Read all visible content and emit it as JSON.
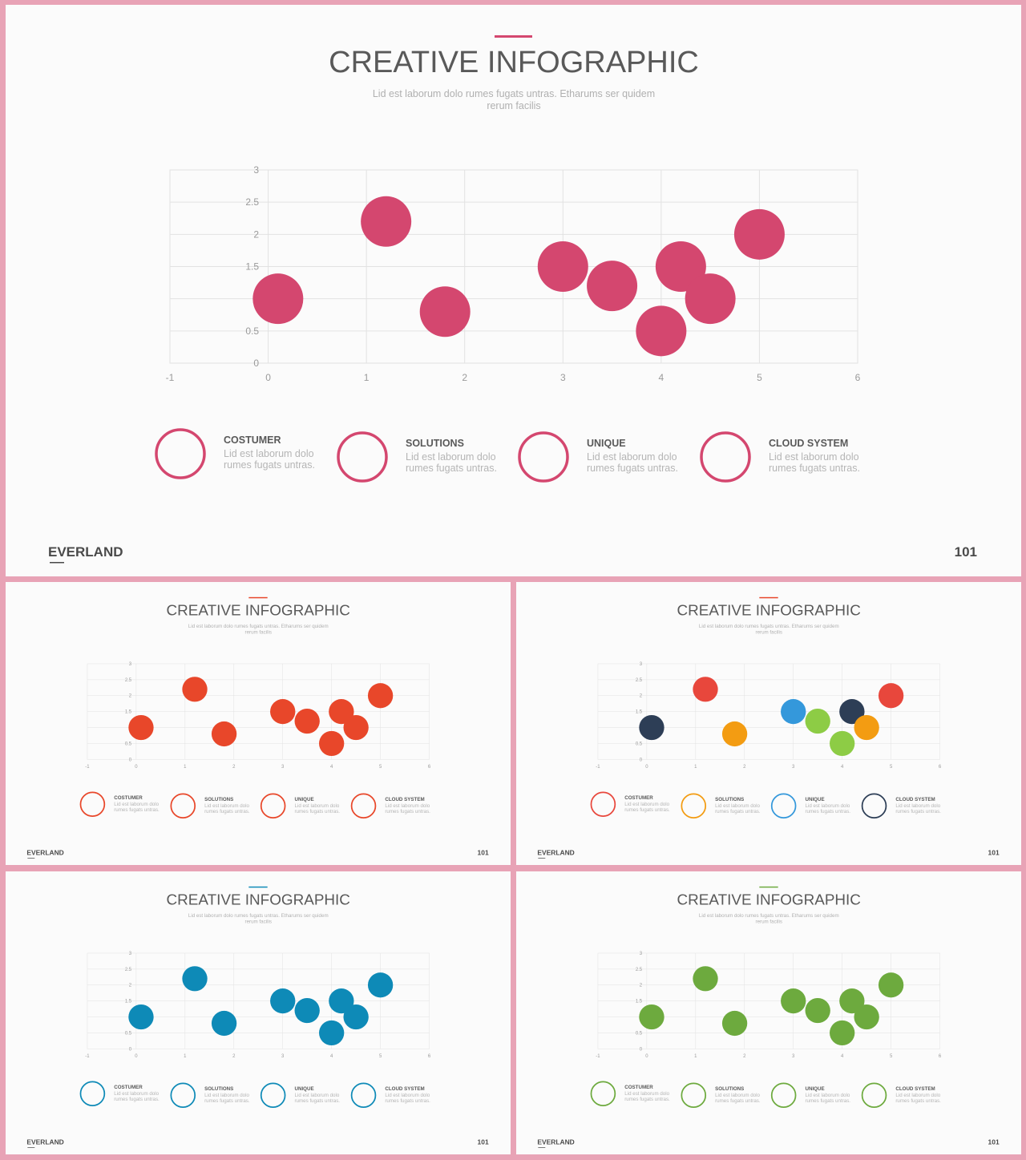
{
  "slide": {
    "title": "CREATIVE INFOGRAPHIC",
    "subtitle_line1": "Lid est laborum dolo rumes fugats untras. Etharums ser quidem",
    "subtitle_line2": "rerum facilis",
    "brand": "EVERLAND",
    "page_number": "101",
    "legend": [
      {
        "title": "COSTUMER",
        "line1": "Lid est laborum dolo",
        "line2": "rumes fugats untras."
      },
      {
        "title": "SOLUTIONS",
        "line1": "Lid est laborum dolo",
        "line2": "rumes fugats untras."
      },
      {
        "title": "UNIQUE",
        "line1": "Lid est laborum dolo",
        "line2": "rumes fugats untras."
      },
      {
        "title": "CLOUD SYSTEM",
        "line1": "Lid est laborum dolo",
        "line2": "rumes fugats untras."
      }
    ]
  },
  "chart_data": {
    "type": "scatter",
    "title": "",
    "xlabel": "",
    "ylabel": "",
    "xlim": [
      -1,
      6
    ],
    "ylim": [
      0,
      3
    ],
    "x_ticks": [
      "-1",
      "0",
      "1",
      "2",
      "3",
      "4",
      "5",
      "6"
    ],
    "y_ticks": [
      "0",
      "0.5",
      "",
      "1.5",
      "2",
      "2.5",
      "3"
    ],
    "grid": true,
    "points": [
      {
        "x": 0.1,
        "y": 1.0
      },
      {
        "x": 1.2,
        "y": 2.2
      },
      {
        "x": 1.8,
        "y": 0.8
      },
      {
        "x": 3.0,
        "y": 1.5
      },
      {
        "x": 3.5,
        "y": 1.2
      },
      {
        "x": 4.0,
        "y": 0.5
      },
      {
        "x": 4.2,
        "y": 1.5
      },
      {
        "x": 4.5,
        "y": 1.0
      },
      {
        "x": 5.0,
        "y": 2.0
      }
    ]
  },
  "variants": [
    {
      "name": "pink",
      "accent": "#d4476f",
      "point_colors": [
        "#d4476f",
        "#d4476f",
        "#d4476f",
        "#d4476f",
        "#d4476f",
        "#d4476f",
        "#d4476f",
        "#d4476f",
        "#d4476f"
      ],
      "legend_colors": [
        "#d4476f",
        "#d4476f",
        "#d4476f",
        "#d4476f"
      ]
    },
    {
      "name": "red",
      "accent": "#e8472a",
      "point_colors": [
        "#e8472a",
        "#e8472a",
        "#e8472a",
        "#e8472a",
        "#e8472a",
        "#e8472a",
        "#e8472a",
        "#e8472a",
        "#e8472a"
      ],
      "legend_colors": [
        "#e8472a",
        "#e8472a",
        "#e8472a",
        "#e8472a"
      ]
    },
    {
      "name": "multicolor",
      "accent": "#e8472a",
      "point_colors": [
        "#2d3e56",
        "#e8473c",
        "#f39c12",
        "#3498db",
        "#8dcc45",
        "#8dcc45",
        "#2d3e56",
        "#f39c12",
        "#e8473c"
      ],
      "legend_colors": [
        "#e8473c",
        "#f39c12",
        "#3498db",
        "#2d3e56"
      ]
    },
    {
      "name": "blue",
      "accent": "#0e8ab7",
      "point_colors": [
        "#0e8ab7",
        "#0e8ab7",
        "#0e8ab7",
        "#0e8ab7",
        "#0e8ab7",
        "#0e8ab7",
        "#0e8ab7",
        "#0e8ab7",
        "#0e8ab7"
      ],
      "legend_colors": [
        "#0e8ab7",
        "#0e8ab7",
        "#0e8ab7",
        "#0e8ab7"
      ]
    },
    {
      "name": "green",
      "accent": "#6daa3e",
      "point_colors": [
        "#6daa3e",
        "#6daa3e",
        "#6daa3e",
        "#6daa3e",
        "#6daa3e",
        "#6daa3e",
        "#6daa3e",
        "#6daa3e",
        "#6daa3e"
      ],
      "legend_colors": [
        "#6daa3e",
        "#6daa3e",
        "#6daa3e",
        "#6daa3e"
      ]
    }
  ]
}
